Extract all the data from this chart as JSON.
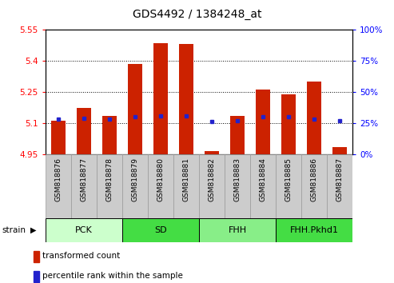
{
  "title": "GDS4492 / 1384248_at",
  "samples": [
    "GSM818876",
    "GSM818877",
    "GSM818878",
    "GSM818879",
    "GSM818880",
    "GSM818881",
    "GSM818882",
    "GSM818883",
    "GSM818884",
    "GSM818885",
    "GSM818886",
    "GSM818887"
  ],
  "transformed_count": [
    5.11,
    5.175,
    5.135,
    5.385,
    5.485,
    5.48,
    4.965,
    5.135,
    5.26,
    5.24,
    5.3,
    4.985
  ],
  "percentile_rank": [
    28,
    29,
    28,
    30,
    31,
    31,
    26,
    27,
    30,
    30,
    28,
    27
  ],
  "groups": [
    {
      "label": "PCK",
      "start": 0,
      "end": 3,
      "color": "#ccffcc"
    },
    {
      "label": "SD",
      "start": 3,
      "end": 6,
      "color": "#44dd44"
    },
    {
      "label": "FHH",
      "start": 6,
      "end": 9,
      "color": "#88ee88"
    },
    {
      "label": "FHH.Pkhd1",
      "start": 9,
      "end": 12,
      "color": "#44dd44"
    }
  ],
  "ylim_left": [
    4.95,
    5.55
  ],
  "ylim_right": [
    0,
    100
  ],
  "yticks_left": [
    4.95,
    5.1,
    5.25,
    5.4,
    5.55
  ],
  "yticks_right": [
    0,
    25,
    50,
    75,
    100
  ],
  "bar_color": "#cc2200",
  "dot_color": "#2222cc",
  "bar_bottom": 4.95,
  "strain_label": "strain",
  "legend_items": [
    {
      "label": "transformed count",
      "color": "#cc2200"
    },
    {
      "label": "percentile rank within the sample",
      "color": "#2222cc"
    }
  ],
  "tick_box_color": "#cccccc",
  "tick_box_edge": "#999999"
}
